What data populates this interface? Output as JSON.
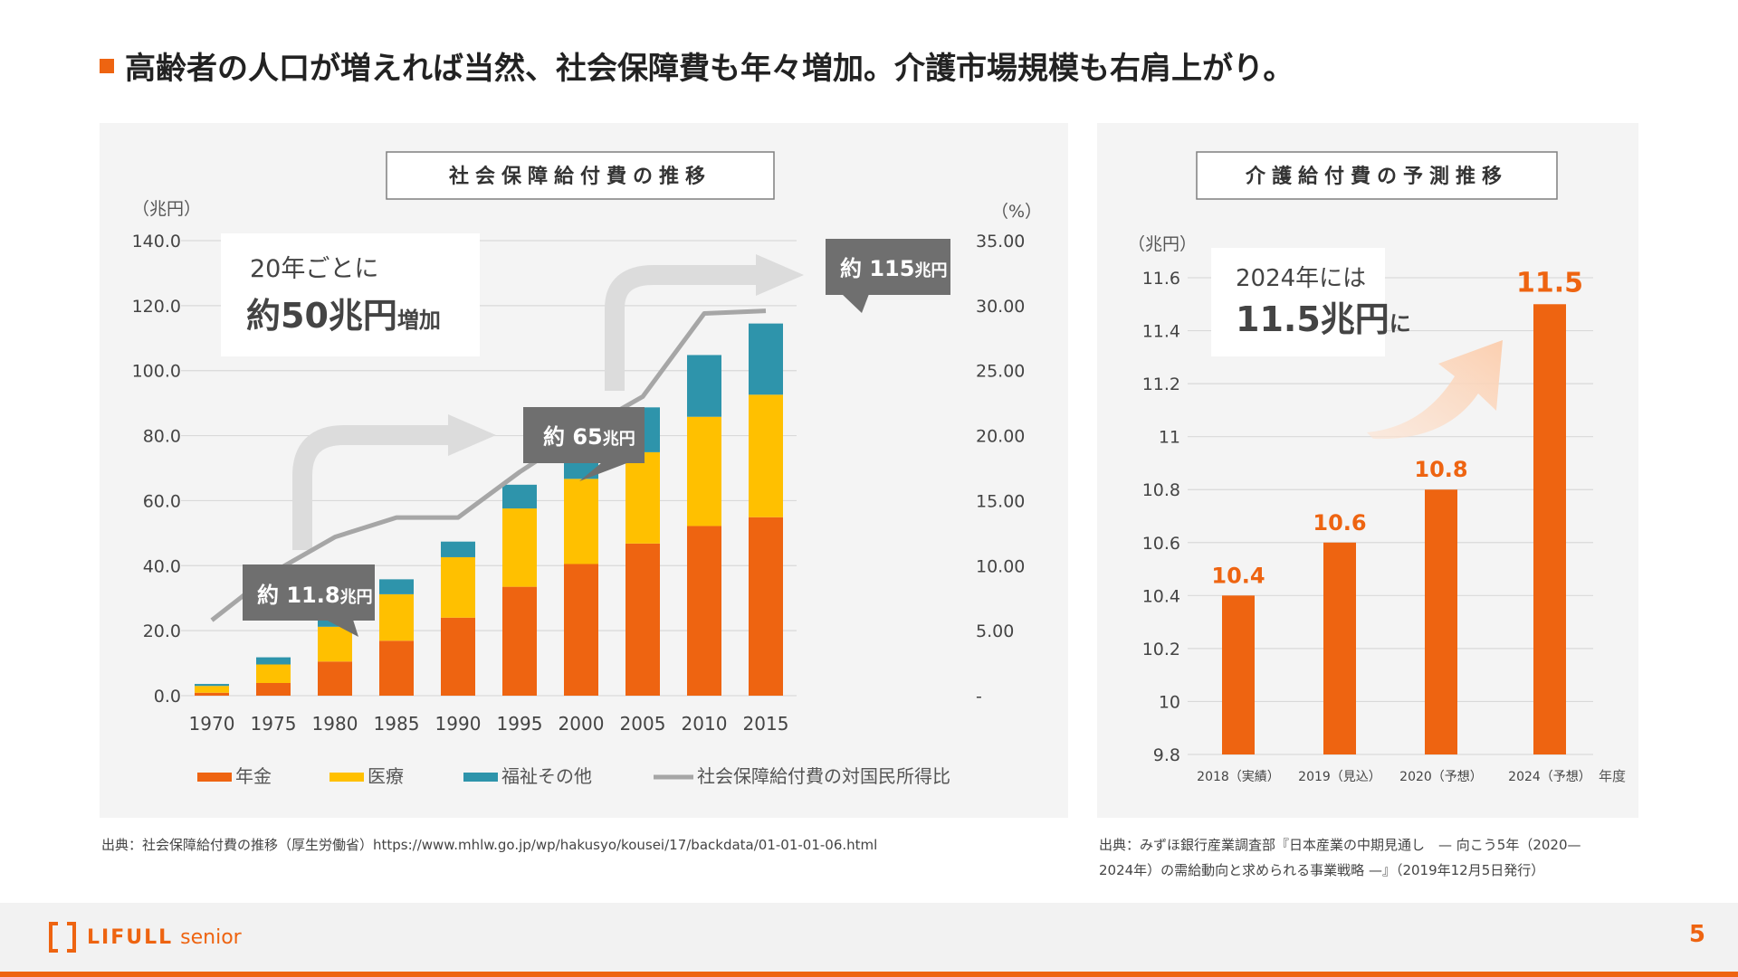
{
  "headline": "高齢者の人口が増えれば当然、社会保障費も年々増加。介護市場規模も右肩上がり。",
  "colors": {
    "accent": "#ee6411",
    "pension": "#ee6411",
    "medical": "#ffc000",
    "welfare": "#2e94ab",
    "ratio_line": "#a6a6a6",
    "callout": "#6f6f6f",
    "arrow": "#d9d9d9"
  },
  "chart_data": [
    {
      "type": "bar",
      "stacked": true,
      "title": "社会保障給付費の推移",
      "ylabel": "（兆円）",
      "y2label": "（%）",
      "ylim": [
        0,
        140
      ],
      "y2lim": [
        0,
        35
      ],
      "yticks": [
        "0.0",
        "20.0",
        "40.0",
        "60.0",
        "80.0",
        "100.0",
        "120.0",
        "140.0"
      ],
      "y2ticks": [
        "-",
        "5.00",
        "10.00",
        "15.00",
        "20.00",
        "25.00",
        "30.00",
        "35.00"
      ],
      "grid": true,
      "legend_position": "bottom",
      "categories": [
        "1970",
        "1975",
        "1980",
        "1985",
        "1990",
        "1995",
        "2000",
        "2005",
        "2010",
        "2015"
      ],
      "series": [
        {
          "name": "年金",
          "values": [
            0.9,
            3.9,
            10.5,
            16.9,
            24.0,
            33.5,
            40.5,
            46.8,
            52.2,
            54.9
          ]
        },
        {
          "name": "医療",
          "values": [
            2.1,
            5.7,
            10.7,
            14.3,
            18.6,
            24.1,
            26.2,
            28.1,
            33.6,
            37.7
          ]
        },
        {
          "name": "福祉その他",
          "values": [
            0.6,
            2.2,
            3.6,
            4.6,
            4.8,
            7.3,
            11.6,
            13.8,
            19.0,
            21.9
          ]
        },
        {
          "name": "社会保障給付費の対国民所得比",
          "type": "line",
          "axis": "right",
          "values": [
            5.8,
            9.5,
            12.2,
            13.7,
            13.7,
            17.2,
            20.3,
            23.0,
            29.4,
            29.6
          ]
        }
      ],
      "annotations": {
        "growth_note_line1": "20年ごとに",
        "growth_note_big": "約50兆円",
        "growth_note_small": "増加",
        "callout_1970_num": "約 11.8",
        "callout_1990_num": "約 65",
        "callout_2015_num": "約 115",
        "callout_unit": "兆円"
      }
    },
    {
      "type": "bar",
      "title": "介護給付費の予測推移",
      "ylabel": "（兆円）",
      "xlabel": "年度",
      "ylim": [
        9.8,
        11.6
      ],
      "yticks": [
        "9.8",
        "10",
        "10.2",
        "10.4",
        "10.6",
        "10.8",
        "11",
        "11.2",
        "11.4",
        "11.6"
      ],
      "grid": true,
      "categories": [
        "2018（実績）",
        "2019（見込）",
        "2020（予想）",
        "2024（予想）"
      ],
      "values": [
        10.4,
        10.6,
        10.8,
        11.5
      ],
      "data_labels": [
        "10.4",
        "10.6",
        "10.8",
        "11.5"
      ],
      "annotations": {
        "note_line1": "2024年には",
        "note_big": "11.5兆円",
        "note_small": "に"
      }
    }
  ],
  "sources": {
    "left": "出典：社会保障給付費の推移（厚生労働省）https://www.mhlw.go.jp/wp/hakusyo/kousei/17/backdata/01-01-01-06.html",
    "right_line1": "出典：みずほ銀行産業調査部『日本産業の中期見通し　— 向こう5年（2020—",
    "right_line2": "2024年）の需給動向と求められる事業戦略 —』（2019年12月5日発行）"
  },
  "footer": {
    "brand": "LIFULL",
    "brand_sub": "senior",
    "page_number": "5"
  }
}
